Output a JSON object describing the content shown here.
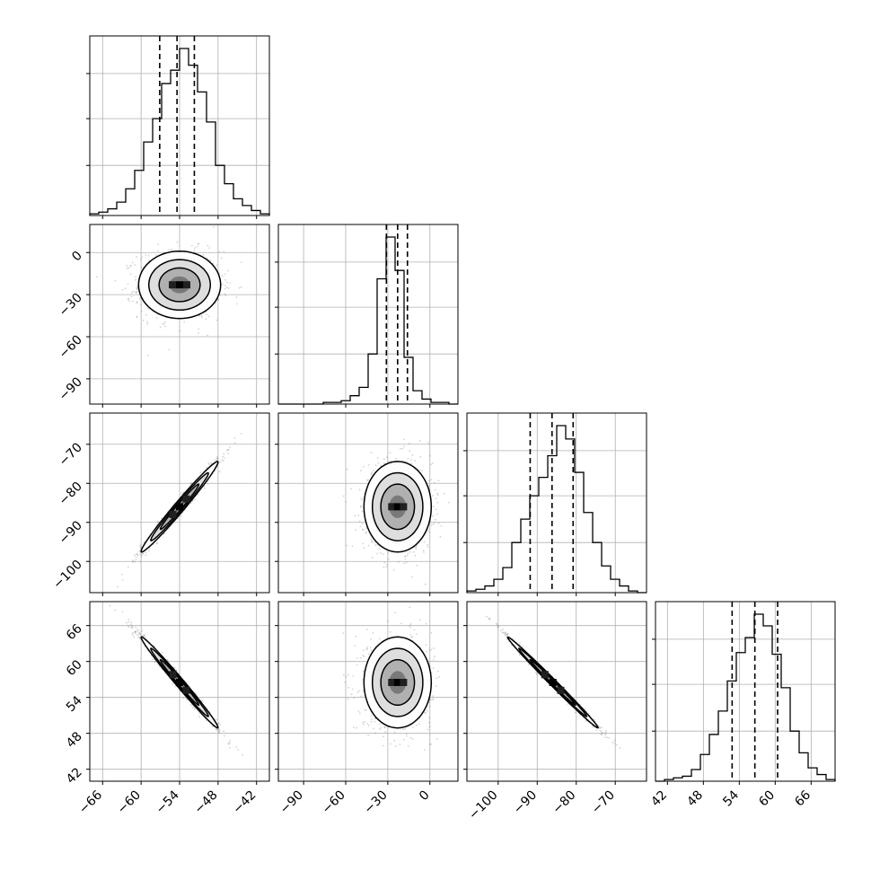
{
  "chart_data": {
    "type": "scatter",
    "title": "",
    "plot_kind": "corner",
    "grid": true,
    "legend": "none",
    "colors": {
      "ink": "#000000",
      "grid": "#b0b0b0",
      "scatter": "#808080"
    },
    "parameters": [
      {
        "label": "",
        "range": [
          -68,
          -40
        ],
        "ticks": [
          -66,
          -60,
          -54,
          -48,
          -42
        ],
        "quantiles": [
          -57.1,
          -54.4,
          -51.7
        ]
      },
      {
        "label": "",
        "range": [
          -108,
          20
        ],
        "ticks": [
          -90,
          -60,
          -30,
          0
        ],
        "quantiles": [
          -31,
          -23,
          -16
        ]
      },
      {
        "label": "",
        "range": [
          -108,
          -62
        ],
        "ticks": [
          -100,
          -90,
          -80,
          -70
        ],
        "quantiles": [
          -91.8,
          -86.2,
          -80.8
        ]
      },
      {
        "label": "",
        "range": [
          40,
          70
        ],
        "ticks": [
          42,
          48,
          54,
          60,
          66
        ],
        "quantiles": [
          52.8,
          56.6,
          60.4
        ]
      }
    ],
    "histograms": [
      {
        "values": [
          0.01,
          0.02,
          0.04,
          0.08,
          0.16,
          0.27,
          0.44,
          0.58,
          0.79,
          0.87,
          1.0,
          0.9,
          0.74,
          0.56,
          0.3,
          0.19,
          0.1,
          0.06,
          0.03,
          0.01
        ]
      },
      {
        "values": [
          0,
          0,
          0,
          0,
          0,
          0.01,
          0.01,
          0.02,
          0.05,
          0.1,
          0.3,
          0.75,
          1.0,
          0.8,
          0.28,
          0.08,
          0.03,
          0.01,
          0.01,
          0
        ]
      },
      {
        "values": [
          0.01,
          0.02,
          0.04,
          0.08,
          0.15,
          0.3,
          0.44,
          0.58,
          0.69,
          0.82,
          1.0,
          0.92,
          0.72,
          0.48,
          0.3,
          0.16,
          0.08,
          0.04,
          0.01,
          0
        ]
      },
      {
        "values": [
          0,
          0.01,
          0.02,
          0.03,
          0.07,
          0.16,
          0.28,
          0.42,
          0.6,
          0.77,
          0.86,
          1.0,
          0.93,
          0.76,
          0.56,
          0.3,
          0.17,
          0.08,
          0.04,
          0.01
        ]
      }
    ],
    "pairs": [
      {
        "x": 0,
        "y": 1,
        "center": [
          -54,
          -23
        ],
        "sigma": [
          3.2,
          12
        ],
        "rho": 0.0,
        "n": 1000
      },
      {
        "x": 0,
        "y": 2,
        "center": [
          -54,
          -86
        ],
        "sigma": [
          3.0,
          5.8
        ],
        "rho": 0.985,
        "n": 1000
      },
      {
        "x": 1,
        "y": 2,
        "center": [
          -23,
          -86
        ],
        "sigma": [
          12,
          5.8
        ],
        "rho": 0.0,
        "n": 1000
      },
      {
        "x": 0,
        "y": 3,
        "center": [
          -54,
          56.5
        ],
        "sigma": [
          3.0,
          3.8
        ],
        "rho": -0.99,
        "n": 1000
      },
      {
        "x": 1,
        "y": 3,
        "center": [
          -23,
          56.5
        ],
        "sigma": [
          12,
          3.8
        ],
        "rho": 0.0,
        "n": 1000
      },
      {
        "x": 2,
        "y": 3,
        "center": [
          -86,
          56.5
        ],
        "sigma": [
          5.8,
          3.8
        ],
        "rho": -0.995,
        "n": 1000
      }
    ]
  }
}
